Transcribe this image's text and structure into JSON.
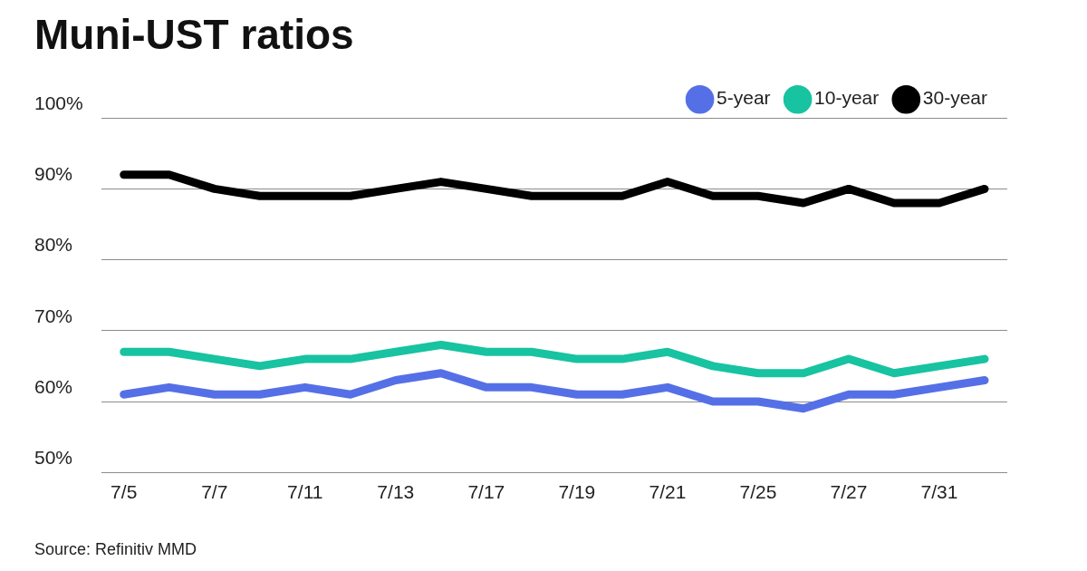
{
  "chart_data": {
    "type": "line",
    "title": "Muni-UST ratios",
    "source": "Source: Refinitiv MMD",
    "categories": [
      "7/5",
      null,
      "7/7",
      null,
      "7/11",
      null,
      "7/13",
      null,
      "7/17",
      null,
      "7/19",
      null,
      "7/21",
      null,
      "7/25",
      null,
      "7/27",
      null,
      "7/31",
      null
    ],
    "series": [
      {
        "name": "5-year",
        "color": "#5570e6",
        "values": [
          61,
          62,
          61,
          61,
          62,
          61,
          63,
          64,
          62,
          62,
          61,
          61,
          62,
          60,
          60,
          59,
          61,
          61,
          62,
          63
        ]
      },
      {
        "name": "10-year",
        "color": "#17c3a0",
        "values": [
          67,
          67,
          66,
          65,
          66,
          66,
          67,
          68,
          67,
          67,
          66,
          66,
          67,
          65,
          64,
          64,
          66,
          64,
          65,
          66
        ]
      },
      {
        "name": "30-year",
        "color": "#000000",
        "values": [
          92,
          92,
          90,
          89,
          89,
          89,
          90,
          91,
          90,
          89,
          89,
          89,
          91,
          89,
          89,
          88,
          90,
          88,
          88,
          90
        ]
      }
    ],
    "ylim": [
      50,
      100
    ],
    "yticks": [
      {
        "value": 50,
        "label": "50%"
      },
      {
        "value": 60,
        "label": "60%"
      },
      {
        "value": 70,
        "label": "70%"
      },
      {
        "value": 80,
        "label": "80%"
      },
      {
        "value": 90,
        "label": "90%"
      },
      {
        "value": 100,
        "label": "100%"
      }
    ],
    "grid": true,
    "legend": "top-right"
  }
}
